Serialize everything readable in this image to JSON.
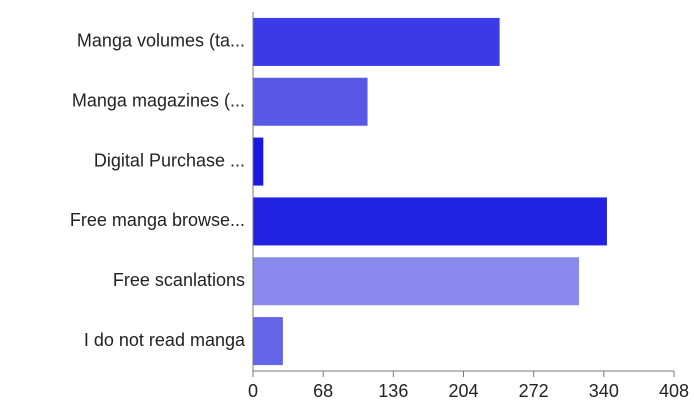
{
  "chart_data": {
    "type": "hbar",
    "categories": [
      "Manga volumes (ta...",
      "Manga magazines (...",
      "Digital Purchase ...",
      "Free manga browse...",
      "Free scanlations",
      "I do not read manga"
    ],
    "values": [
      239,
      111,
      10,
      343,
      316,
      29
    ],
    "colors": [
      "#3a3ae8",
      "#5858e6",
      "#1818e2",
      "#2222e2",
      "#8a8aee",
      "#6464e6"
    ],
    "xlim": [
      0,
      408
    ],
    "xticks": [
      0,
      68,
      136,
      204,
      272,
      340,
      408
    ],
    "grid": false
  }
}
